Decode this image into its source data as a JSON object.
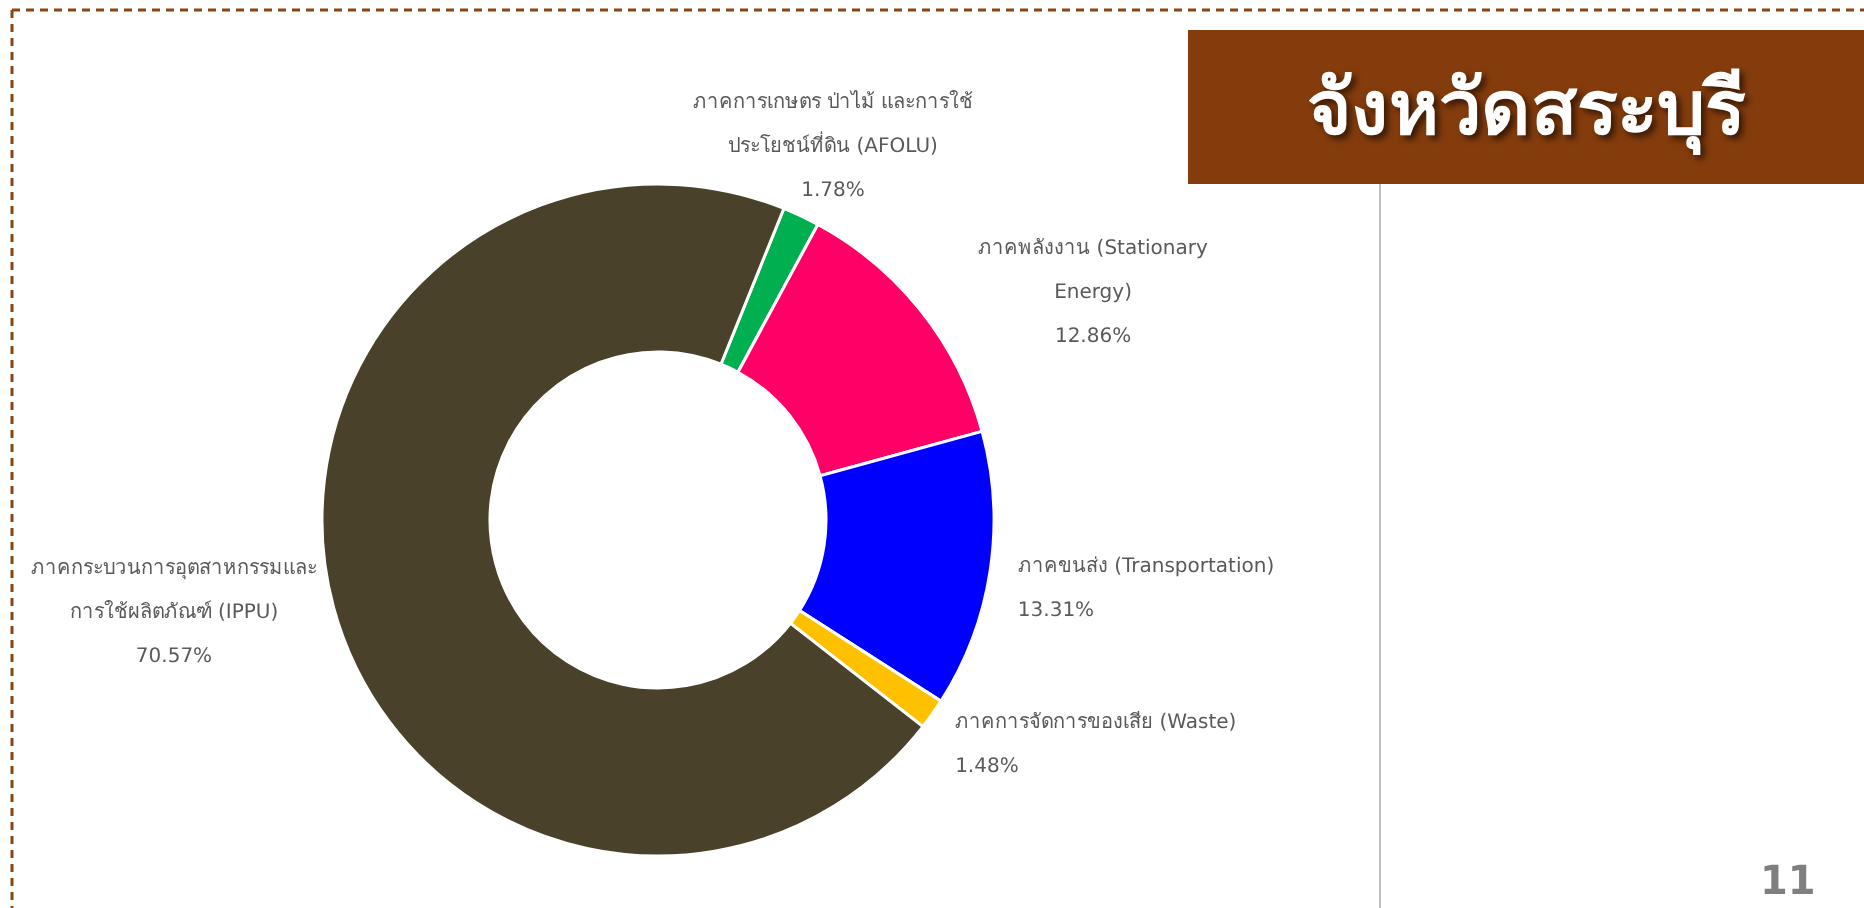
{
  "chart_data": {
    "type": "donut",
    "title": "จังหวัดสระบุรี",
    "categories": [
      "ภาคการเกษตร ป่าไม้ และการใช้ประโยชน์ที่ดิน (AFOLU)",
      "ภาคพลังงาน (Stationary Energy)",
      "ภาคขนส่ง (Transportation)",
      "ภาคการจัดการของเสีย (Waste)",
      "ภาคกระบวนการอุตสาหกรรมและการใช้ผลิตภัณฑ์ (IPPU)"
    ],
    "values": [
      1.78,
      12.86,
      13.31,
      1.48,
      70.57
    ],
    "colors": [
      "#00b050",
      "#ff0066",
      "#0000ff",
      "#ffc000",
      "#4a412a"
    ],
    "value_labels": [
      "1.78%",
      "12.86%",
      "13.31%",
      "1.48%",
      "70.57%"
    ],
    "annotations": [
      "11"
    ]
  }
}
